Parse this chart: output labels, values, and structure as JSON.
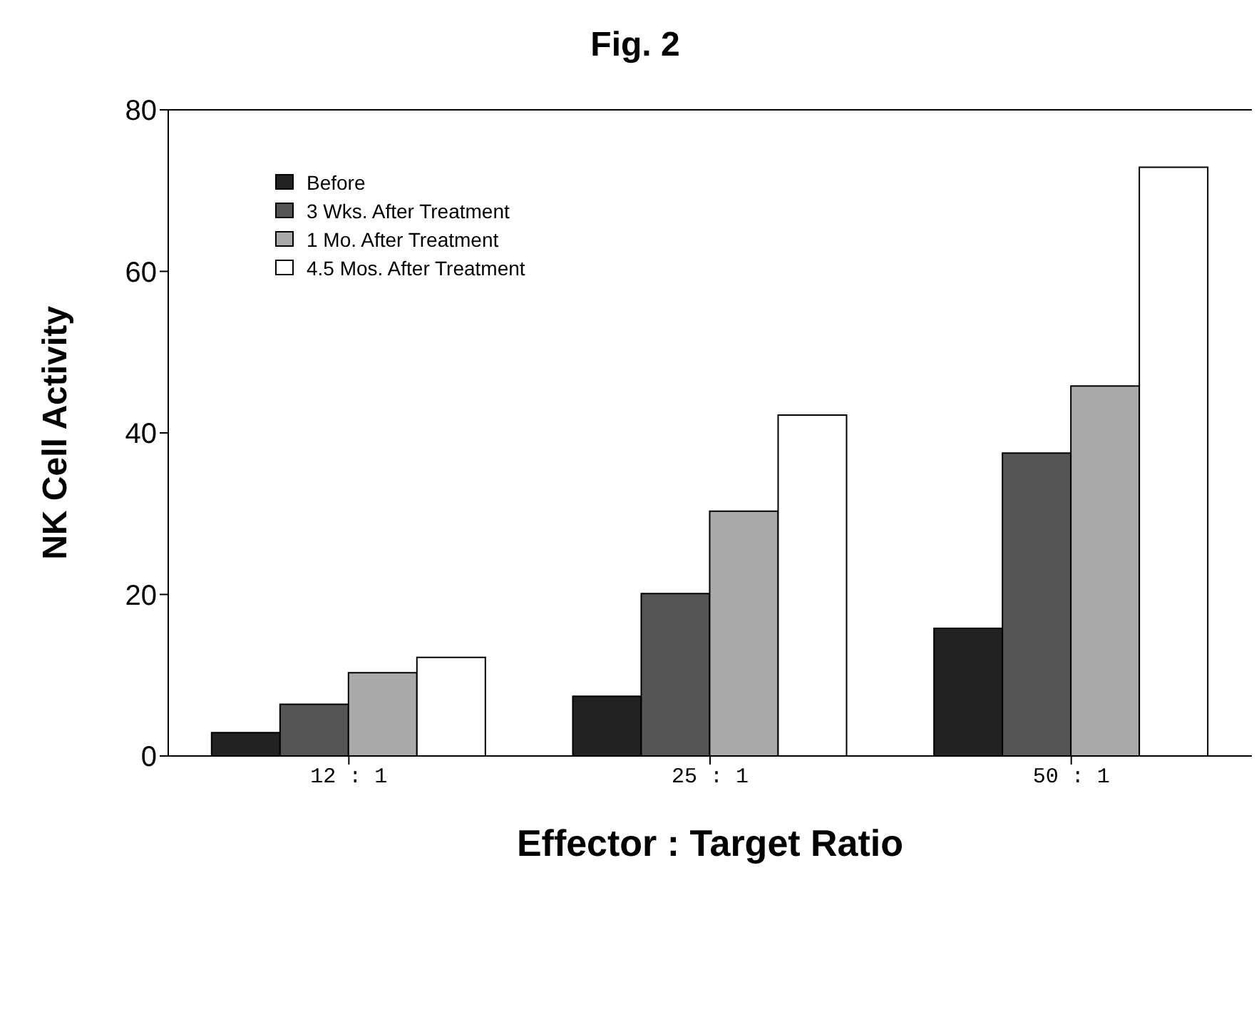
{
  "chart_data": {
    "type": "bar",
    "title": "Fig. 2",
    "xlabel": "Effector : Target Ratio",
    "ylabel": "NK Cell Activity",
    "categories": [
      "12 : 1",
      "25 : 1",
      "50 : 1"
    ],
    "series": [
      {
        "name": "Before",
        "color": "#222222",
        "values": [
          2.9,
          7.4,
          15.8
        ]
      },
      {
        "name": "3 Wks. After Treatment",
        "color": "#555555",
        "values": [
          6.4,
          20.1,
          37.5
        ]
      },
      {
        "name": "1 Mo. After Treatment",
        "color": "#aaaaaa",
        "values": [
          10.3,
          30.3,
          45.8
        ]
      },
      {
        "name": "4.5 Mos. After Treatment",
        "color": "#ffffff",
        "values": [
          12.2,
          42.2,
          72.9
        ]
      }
    ],
    "ylim": [
      0,
      80
    ],
    "yticks": [
      0,
      20,
      40,
      60,
      80
    ],
    "grid": false,
    "legend": "top left"
  }
}
